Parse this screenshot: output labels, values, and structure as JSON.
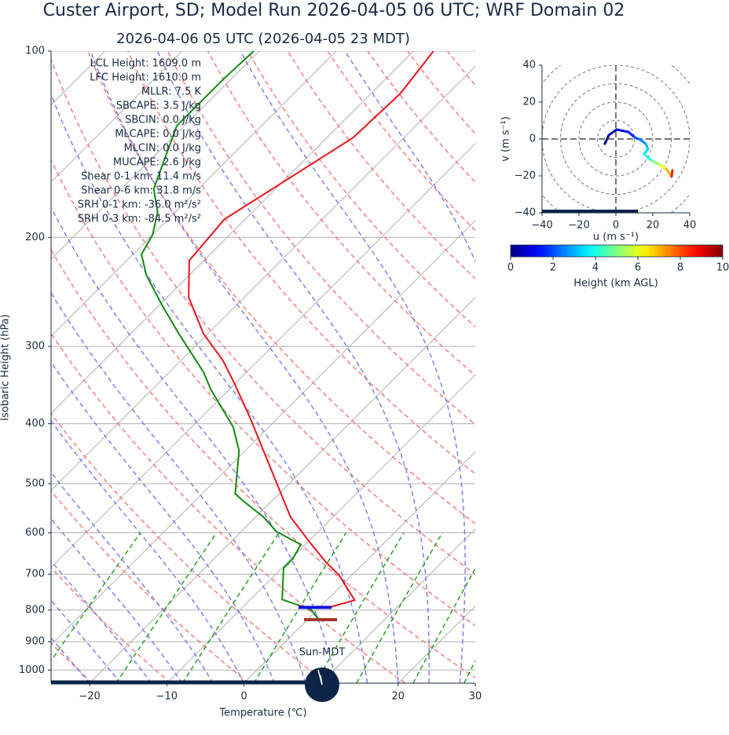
{
  "chart_data": [
    {
      "type": "skewt",
      "title": "Custer Airport, SD; Model Run 2026-04-05 06 UTC; WRF Domain 02",
      "subtitle": "2026-04-06 05 UTC  (2026-04-05 23 MDT)",
      "xlabel": "Temperature (℃)",
      "ylabel": "Isobaric Height (hPa)",
      "xlim": [
        -25,
        30
      ],
      "ylim": [
        1050,
        100
      ],
      "log_y": true,
      "grid": true,
      "xticks": [
        {
          "value": -20,
          "label": "−20"
        },
        {
          "value": -10,
          "label": "−10"
        },
        0,
        10,
        20,
        30
      ],
      "yticks": [
        100,
        200,
        300,
        400,
        500,
        600,
        700,
        800,
        900,
        1000
      ],
      "series": [
        {
          "color": "#e8161b",
          "pressure": [
            792,
            771,
            701,
            671,
            624,
            566,
            393,
            345,
            316,
            286,
            250,
            218,
            187,
            138,
            117,
            100
          ],
          "temperature": [
            1.2,
            3.6,
            -1.8,
            -4.9,
            -9.5,
            -15.5,
            -33.4,
            -40.0,
            -44.6,
            -50.6,
            -57.2,
            -61.9,
            -62.7,
            -56.6,
            -56.2,
            -57.4
          ]
        },
        {
          "color": "#138a13",
          "pressure": [
            828,
            799,
            769,
            684,
            661,
            627,
            597,
            566,
            534,
            519,
            442,
            405,
            352,
            330,
            286,
            258,
            230,
            213,
            198,
            182,
            167,
            132,
            111,
            100
          ],
          "temperature": [
            1.4,
            -0.8,
            -5.9,
            -9.8,
            -9.8,
            -10.6,
            -15.5,
            -19.0,
            -23.6,
            -25.7,
            -30.8,
            -34.6,
            -42.4,
            -45.6,
            -53.8,
            -59.5,
            -65.6,
            -68.9,
            -70.0,
            -72.3,
            -75.8,
            -81.0,
            -81.0,
            -80.7
          ]
        }
      ],
      "markers": [
        {
          "pressure": 792,
          "temperature": -0.6,
          "color": "#1010e0"
        },
        {
          "pressure": 829,
          "temperature": 1.7,
          "color": "#a0352a"
        }
      ],
      "annotations": [
        "LCL Height: 1609.0 m",
        "LFC Height: 1610.0 m",
        "MLLR: 7.5 K",
        "SBCAPE: 3.5 J/kg",
        "SBCIN: 0.0 J/kg",
        "MLCAPE: 0.0 J/kg",
        "MLCIN: 0.0 J/kg",
        "MUCAPE: 2.6 J/kg",
        "Shear 0-1 km: 11.4 m/s",
        "Shear 0-6 km: 31.8 m/s",
        "SRH 0-1 km: -36.0 m²/s²",
        "SRH 0-3 km: -84.5 m²/s²"
      ],
      "sun_label": "Sun-MDT"
    },
    {
      "type": "hodograph",
      "xlabel": "u (m s⁻¹)",
      "ylabel": "v (m s⁻¹)",
      "xlim": [
        -40,
        40
      ],
      "ylim": [
        -40,
        40
      ],
      "xticks": [
        {
          "value": -40,
          "label": "−40"
        },
        {
          "value": -20,
          "label": "−20"
        },
        0,
        20,
        40
      ],
      "yticks": [
        {
          "value": -40,
          "label": "−40"
        },
        {
          "value": -20,
          "label": "−20"
        },
        0,
        20,
        40
      ],
      "u": [
        -6.0,
        -3.8,
        0.4,
        6.8,
        10.2,
        13.2,
        16.2,
        17.4,
        15.3,
        19.6,
        23.8,
        27.2,
        30.2,
        30.6
      ],
      "v": [
        -2.6,
        2.1,
        5.1,
        3.8,
        0.9,
        -0.4,
        -2.6,
        -5.5,
        -8.1,
        -11.9,
        -14.0,
        -16.2,
        -20.4,
        -17.0
      ],
      "heights": [
        0,
        0.5,
        1,
        1.5,
        2,
        2.5,
        3,
        3.5,
        4,
        5,
        6,
        7,
        8.5,
        10
      ],
      "colorbar": {
        "label": "Height (km AGL)",
        "colormap": "jet",
        "clim": [
          0,
          10
        ],
        "ticks": [
          0,
          2,
          4,
          6,
          8,
          10
        ]
      }
    }
  ]
}
